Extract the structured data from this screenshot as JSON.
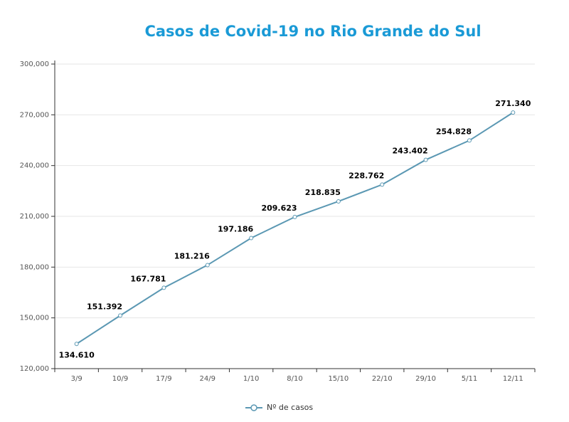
{
  "chart_data": {
    "type": "line",
    "title": "Casos de Covid-19 no Rio Grande do Sul",
    "categories": [
      "3/9",
      "10/9",
      "17/9",
      "24/9",
      "1/10",
      "8/10",
      "15/10",
      "22/10",
      "29/10",
      "5/11",
      "12/11"
    ],
    "series": [
      {
        "name": "Nº de casos",
        "color": "#5b98b3",
        "values": [
          134610,
          151392,
          167781,
          181216,
          197186,
          209623,
          218835,
          228762,
          243402,
          254828,
          271340
        ],
        "value_labels": [
          "134.610",
          "151.392",
          "167.781",
          "181.216",
          "197.186",
          "209.623",
          "218.835",
          "228.762",
          "243.402",
          "254.828",
          "271.340"
        ]
      }
    ],
    "ylim": [
      120000,
      300000
    ],
    "yticks": [
      {
        "value": 120000,
        "label": "120,000"
      },
      {
        "value": 150000,
        "label": "150,000"
      },
      {
        "value": 180000,
        "label": "180,000"
      },
      {
        "value": 210000,
        "label": "210,000"
      },
      {
        "value": 240000,
        "label": "240,000"
      },
      {
        "value": 270000,
        "label": "270,000"
      },
      {
        "value": 300000,
        "label": "300,000"
      }
    ],
    "grid": true
  }
}
